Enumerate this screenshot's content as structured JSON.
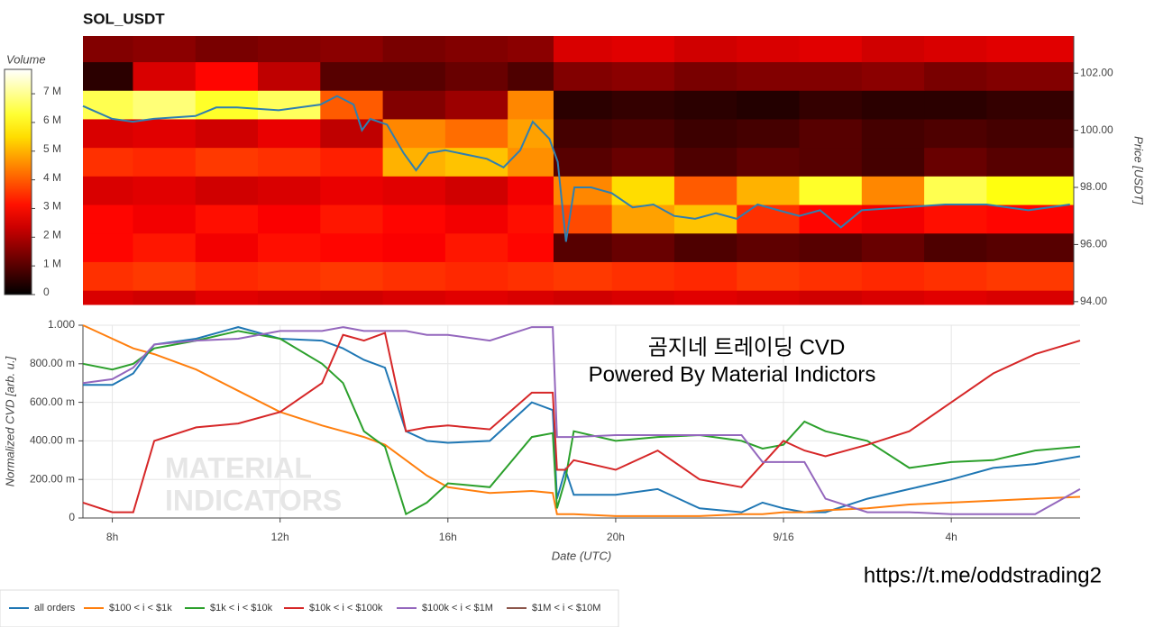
{
  "chart_data": [
    {
      "type": "heatmap",
      "title": "SOL_USDT",
      "colorbar_label": "Volume",
      "ylabel": "Price [USDT]",
      "xlim": [
        7.3,
        31.07
      ],
      "ylim": [
        93.9,
        103.3
      ],
      "yticks": [
        {
          "value": 94,
          "label": "94.00"
        },
        {
          "value": 96,
          "label": "96.00"
        },
        {
          "value": 98,
          "label": "98.00"
        },
        {
          "value": 100,
          "label": "100.00"
        },
        {
          "value": 102,
          "label": "102.00"
        }
      ],
      "clim": [
        0,
        7.85
      ],
      "cticks": [
        0,
        {
          "value": 1,
          "label": "1 M"
        },
        {
          "value": 2,
          "label": "2 M"
        },
        {
          "value": 3,
          "label": "3 M"
        },
        {
          "value": 4,
          "label": "4 M"
        },
        {
          "value": 5,
          "label": "5 M"
        },
        {
          "value": 6,
          "label": "6 M"
        },
        {
          "value": 7,
          "label": "7 M"
        }
      ],
      "x_bins": [
        7.3,
        8.5,
        10,
        11.5,
        13,
        14.5,
        16,
        17.5,
        18.6,
        20,
        21.5,
        23,
        24.5,
        26,
        27.5,
        29,
        31.07
      ],
      "y_bins": [
        93.9,
        94.4,
        95.4,
        96.4,
        97.4,
        98.4,
        99.4,
        100.4,
        101.4,
        102.4,
        103.3
      ],
      "values": [
        [
          2.5,
          2.4,
          2.6,
          2.5,
          2.4,
          2.5,
          2.6,
          2.5,
          2.4,
          2.5,
          2.6,
          2.5,
          2.4,
          2.5,
          2.6,
          2.5
        ],
        [
          3.5,
          3.6,
          3.4,
          3.5,
          3.6,
          3.5,
          3.4,
          3.5,
          3.6,
          3.5,
          3.4,
          3.6,
          3.5,
          3.4,
          3.5,
          3.6
        ],
        [
          3.0,
          3.2,
          2.8,
          3.1,
          3.0,
          2.9,
          3.2,
          3.0,
          1.0,
          1.2,
          0.9,
          1.1,
          1.0,
          1.2,
          0.9,
          1.0
        ],
        [
          3.0,
          2.8,
          3.1,
          2.9,
          3.2,
          3.0,
          2.8,
          3.1,
          3.8,
          4.8,
          5.2,
          3.5,
          3.0,
          2.8,
          3.1,
          3.0
        ],
        [
          2.5,
          2.6,
          2.4,
          2.5,
          2.7,
          2.6,
          2.4,
          2.8,
          4.5,
          5.5,
          4.0,
          5.0,
          6.2,
          4.5,
          6.5,
          6.0
        ],
        [
          3.5,
          3.4,
          3.6,
          3.5,
          3.3,
          5.0,
          5.2,
          4.6,
          1.0,
          1.2,
          0.9,
          1.1,
          1.0,
          0.8,
          1.2,
          1.0
        ],
        [
          2.5,
          2.6,
          2.4,
          2.7,
          2.2,
          4.5,
          4.2,
          4.8,
          0.8,
          0.9,
          0.7,
          0.8,
          1.0,
          0.8,
          0.9,
          0.8
        ],
        [
          6.5,
          6.8,
          6.2,
          6.6,
          4.0,
          1.5,
          1.8,
          4.5,
          0.5,
          0.6,
          0.5,
          0.4,
          0.6,
          0.5,
          0.5,
          0.6
        ],
        [
          0.5,
          2.5,
          3.0,
          2.2,
          1.0,
          1.0,
          1.2,
          0.9,
          1.5,
          1.6,
          1.4,
          1.5,
          1.5,
          1.6,
          1.4,
          1.5
        ],
        [
          1.5,
          1.6,
          1.4,
          1.5,
          1.6,
          1.4,
          1.5,
          1.6,
          2.5,
          2.6,
          2.4,
          2.5,
          2.6,
          2.4,
          2.5,
          2.6
        ]
      ],
      "price": {
        "color": "#2f7fb0",
        "x": [
          7.3,
          8,
          8.5,
          9,
          10,
          10.5,
          11,
          12,
          13,
          13.4,
          13.8,
          14,
          14.2,
          14.6,
          15,
          15.3,
          15.6,
          16,
          17,
          17.4,
          17.8,
          18.1,
          18.5,
          18.7,
          18.9,
          19.1,
          19.5,
          20,
          20.5,
          21,
          21.5,
          22,
          22.5,
          23,
          23.5,
          24,
          24.5,
          25,
          25.5,
          26,
          27,
          28,
          29,
          30,
          31
        ],
        "values": [
          100.85,
          100.4,
          100.3,
          100.4,
          100.5,
          100.8,
          100.8,
          100.7,
          100.9,
          101.2,
          100.9,
          100.0,
          100.4,
          100.2,
          99.2,
          98.6,
          99.2,
          99.3,
          99.0,
          98.7,
          99.3,
          100.3,
          99.7,
          98.9,
          96.1,
          98.0,
          98.0,
          97.8,
          97.3,
          97.4,
          97.0,
          96.9,
          97.1,
          96.9,
          97.4,
          97.2,
          97.0,
          97.2,
          96.6,
          97.2,
          97.3,
          97.4,
          97.4,
          97.2,
          97.4
        ]
      }
    },
    {
      "type": "line",
      "xlabel": "Date (UTC)",
      "ylabel": "Normalized CVD [arb. u.]",
      "annotations": [
        "곰지네 트레이딩 CVD",
        "Powered By Material Indictors"
      ],
      "watermark": [
        "MATERIAL",
        "INDICATORS"
      ],
      "xlim": [
        7.3,
        31.07
      ],
      "ylim": [
        0,
        1
      ],
      "xticks": [
        {
          "value": 8,
          "label": "8h"
        },
        {
          "value": 12,
          "label": "12h"
        },
        {
          "value": 16,
          "label": "16h"
        },
        {
          "value": 20,
          "label": "20h"
        },
        {
          "value": 24,
          "label": "9/16"
        },
        {
          "value": 28,
          "label": "4h"
        }
      ],
      "yticks": [
        0,
        {
          "value": 0.2,
          "label": "200.00 m"
        },
        {
          "value": 0.4,
          "label": "400.00 m"
        },
        {
          "value": 0.6,
          "label": "600.00 m"
        },
        {
          "value": 0.8,
          "label": "800.00 m"
        },
        {
          "value": 1,
          "label": "1.000"
        }
      ],
      "grid": true,
      "x": [
        7.3,
        8,
        8.5,
        9,
        10,
        11,
        12,
        13,
        13.5,
        14,
        14.5,
        15,
        15.5,
        16,
        17,
        18,
        18.5,
        18.6,
        18.8,
        19,
        20,
        21,
        22,
        23,
        23.5,
        24,
        24.5,
        25,
        26,
        27,
        28,
        29,
        30,
        31.07
      ],
      "series": [
        {
          "name": "all orders",
          "color": "#1f77b4",
          "values": [
            0.69,
            0.69,
            0.75,
            0.9,
            0.93,
            0.99,
            0.93,
            0.92,
            0.88,
            0.82,
            0.78,
            0.45,
            0.4,
            0.39,
            0.4,
            0.6,
            0.56,
            0.1,
            0.25,
            0.12,
            0.12,
            0.15,
            0.05,
            0.03,
            0.08,
            0.05,
            0.03,
            0.03,
            0.1,
            0.15,
            0.2,
            0.26,
            0.28,
            0.32
          ]
        },
        {
          "name": "$100 < i < $1k",
          "color": "#ff7f0e",
          "values": [
            1.0,
            0.93,
            0.88,
            0.85,
            0.77,
            0.66,
            0.55,
            0.48,
            0.45,
            0.42,
            0.38,
            0.3,
            0.22,
            0.16,
            0.13,
            0.14,
            0.13,
            0.02,
            0.02,
            0.02,
            0.01,
            0.01,
            0.01,
            0.02,
            0.02,
            0.03,
            0.03,
            0.04,
            0.05,
            0.07,
            0.08,
            0.09,
            0.1,
            0.11
          ]
        },
        {
          "name": "$1k < i < $10k",
          "color": "#2ca02c",
          "values": [
            0.8,
            0.77,
            0.8,
            0.88,
            0.92,
            0.97,
            0.93,
            0.8,
            0.7,
            0.45,
            0.37,
            0.02,
            0.08,
            0.18,
            0.16,
            0.42,
            0.44,
            0.05,
            0.2,
            0.45,
            0.4,
            0.42,
            0.43,
            0.4,
            0.36,
            0.38,
            0.5,
            0.45,
            0.4,
            0.26,
            0.29,
            0.3,
            0.35,
            0.37
          ]
        },
        {
          "name": "$10k < i < $100k",
          "color": "#d62728",
          "values": [
            0.08,
            0.03,
            0.03,
            0.4,
            0.47,
            0.49,
            0.55,
            0.7,
            0.95,
            0.92,
            0.96,
            0.45,
            0.47,
            0.48,
            0.46,
            0.65,
            0.65,
            0.25,
            0.25,
            0.3,
            0.25,
            0.35,
            0.2,
            0.16,
            0.28,
            0.4,
            0.35,
            0.32,
            0.38,
            0.45,
            0.6,
            0.75,
            0.85,
            0.92
          ]
        },
        {
          "name": "$100k < i < $1M",
          "color": "#9467bd",
          "values": [
            0.7,
            0.72,
            0.78,
            0.9,
            0.92,
            0.93,
            0.97,
            0.97,
            0.99,
            0.97,
            0.97,
            0.97,
            0.95,
            0.95,
            0.92,
            0.99,
            0.99,
            0.42,
            0.42,
            0.42,
            0.43,
            0.43,
            0.43,
            0.43,
            0.29,
            0.29,
            0.29,
            0.1,
            0.03,
            0.03,
            0.02,
            0.02,
            0.02,
            0.15
          ]
        },
        {
          "name": "$1M < i < $10M",
          "color": "#8c564b",
          "values": [
            null,
            null,
            null,
            null,
            null,
            null,
            null,
            null,
            null,
            null,
            null,
            null,
            null,
            null,
            null,
            null,
            null,
            null,
            null,
            null,
            null,
            null,
            null,
            null,
            null,
            null,
            null,
            null,
            null,
            null,
            null,
            null,
            null,
            null
          ]
        }
      ]
    }
  ],
  "footer_link": "https://t.me/oddstrading2"
}
